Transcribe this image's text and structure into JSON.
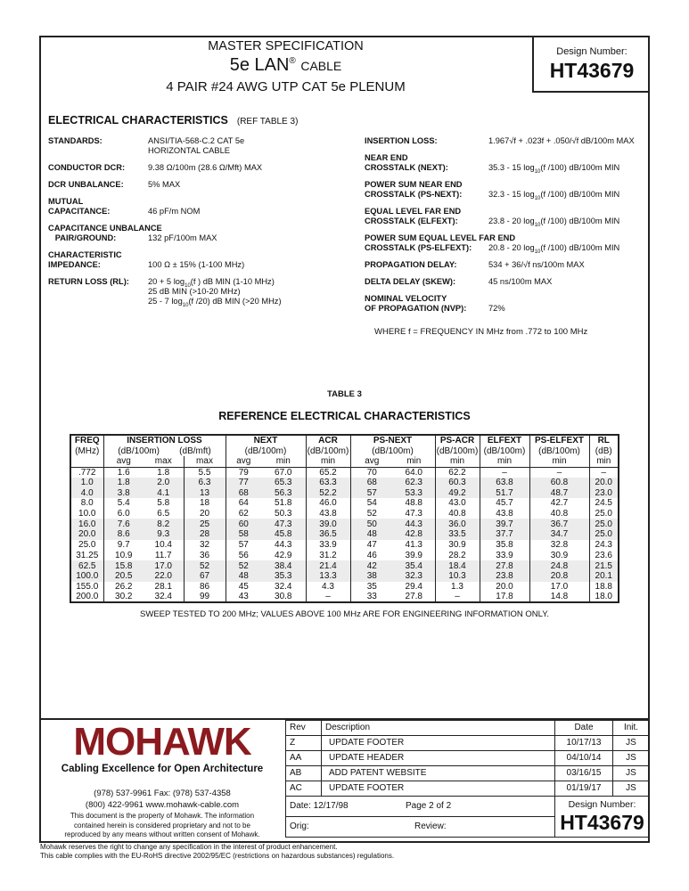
{
  "header": {
    "line1": "MASTER SPECIFICATION",
    "line2_main": "5e LAN",
    "line2_reg": "®",
    "line2_rest": "CABLE",
    "line3": "4 PAIR #24 AWG UTP CAT 5e PLENUM",
    "design_label": "Design Number:",
    "design_number": "HT43679"
  },
  "electrical": {
    "title": "ELECTRICAL CHARACTERISTICS",
    "ref": "(REF TABLE 3)",
    "left": [
      {
        "label": [
          "STANDARDS:"
        ],
        "value": [
          "ANSI/TIA-568-C.2 CAT 5e",
          "HORIZONTAL CABLE"
        ]
      },
      {
        "label": [
          "CONDUCTOR DCR:"
        ],
        "value": [
          "9.38 Ω/100m (28.6 Ω/Mft) MAX"
        ]
      },
      {
        "label": [
          "DCR UNBALANCE:"
        ],
        "value": [
          "5% MAX"
        ]
      },
      {
        "label": [
          "MUTUAL",
          "CAPACITANCE:"
        ],
        "value": [
          "",
          "46 pF/m NOM"
        ]
      },
      {
        "label": [
          "CAPACITANCE UNBALANCE",
          "   PAIR/GROUND:"
        ],
        "value": [
          "",
          "132 pF/100m MAX"
        ]
      },
      {
        "label": [
          "CHARACTERISTIC",
          "IMPEDANCE:"
        ],
        "value": [
          "",
          "100 Ω ± 15% (1-100 MHz)"
        ]
      },
      {
        "label": [
          "RETURN LOSS (RL):"
        ],
        "value": [
          "20 + 5 log|10|(f ) dB MIN (1-10 MHz)",
          "25 dB MIN (>10-20 MHz)",
          "25 - 7 log|10|(f /20) dB MIN (>20 MHz)"
        ]
      }
    ],
    "right": [
      {
        "label": [
          "INSERTION LOSS:"
        ],
        "value": [
          "1.967√f + .023f + .050/√f dB/100m MAX"
        ]
      },
      {
        "label": [
          "NEAR END",
          "CROSSTALK (NEXT):"
        ],
        "value": [
          "",
          "35.3 - 15 log|10|(f /100) dB/100m MIN"
        ]
      },
      {
        "label": [
          "POWER SUM NEAR END",
          "CROSSTALK (PS-NEXT):"
        ],
        "value": [
          "",
          "32.3 - 15 log|10|(f /100) dB/100m MIN"
        ]
      },
      {
        "label": [
          "EQUAL LEVEL FAR END",
          "CROSSTALK (ELFEXT):"
        ],
        "value": [
          "",
          "23.8 - 20 log|10|(f /100) dB/100m MIN"
        ]
      },
      {
        "label": [
          "POWER SUM EQUAL LEVEL FAR END",
          "CROSSTALK (PS-ELFEXT):"
        ],
        "value": [
          "",
          "20.8 - 20 log|10|(f /100) dB/100m MIN"
        ]
      },
      {
        "label": [
          "PROPAGATION DELAY:"
        ],
        "value": [
          "534 + 36/√f  ns/100m MAX"
        ]
      },
      {
        "label": [
          "DELTA DELAY (SKEW):"
        ],
        "value": [
          "45 ns/100m MAX"
        ]
      },
      {
        "label": [
          "NOMINAL VELOCITY",
          "OF PROPAGATION (NVP):"
        ],
        "value": [
          "",
          "72%"
        ]
      }
    ],
    "where": "WHERE f = FREQUENCY IN MHz from .772 to 100 MHz"
  },
  "table": {
    "label": "TABLE 3",
    "title": "REFERENCE ELECTRICAL CHARACTERISTICS",
    "groups": [
      [
        "FREQ",
        "(MHz)",
        1
      ],
      [
        "INSERTION LOSS",
        "(dB/100m)        (dB/mft)",
        3
      ],
      [
        "NEXT",
        "(dB/100m)",
        2
      ],
      [
        "ACR",
        "(dB/100m)",
        1
      ],
      [
        "PS-NEXT",
        "(dB/100m)",
        2
      ],
      [
        "PS-ACR",
        "(dB/100m)",
        1
      ],
      [
        "ELFEXT",
        "(dB/100m)",
        1
      ],
      [
        "PS-ELFEXT",
        "(dB/100m)",
        1
      ],
      [
        "RL",
        "(dB)",
        1
      ]
    ],
    "subheaders": [
      "",
      "avg",
      "max",
      "max",
      "avg",
      "min",
      "min",
      "avg",
      "min",
      "min",
      "min",
      "min",
      "min"
    ],
    "rows": [
      [
        ".772",
        "1.6",
        "1.8",
        "5.5",
        "79",
        "67.0",
        "65.2",
        "70",
        "64.0",
        "62.2",
        "–",
        "–",
        "–"
      ],
      [
        "1.0",
        "1.8",
        "2.0",
        "6.3",
        "77",
        "65.3",
        "63.3",
        "68",
        "62.3",
        "60.3",
        "63.8",
        "60.8",
        "20.0"
      ],
      [
        "4.0",
        "3.8",
        "4.1",
        "13",
        "68",
        "56.3",
        "52.2",
        "57",
        "53.3",
        "49.2",
        "51.7",
        "48.7",
        "23.0"
      ],
      [
        "8.0",
        "5.4",
        "5.8",
        "18",
        "64",
        "51.8",
        "46.0",
        "54",
        "48.8",
        "43.0",
        "45.7",
        "42.7",
        "24.5"
      ],
      [
        "10.0",
        "6.0",
        "6.5",
        "20",
        "62",
        "50.3",
        "43.8",
        "52",
        "47.3",
        "40.8",
        "43.8",
        "40.8",
        "25.0"
      ],
      [
        "16.0",
        "7.6",
        "8.2",
        "25",
        "60",
        "47.3",
        "39.0",
        "50",
        "44.3",
        "36.0",
        "39.7",
        "36.7",
        "25.0"
      ],
      [
        "20.0",
        "8.6",
        "9.3",
        "28",
        "58",
        "45.8",
        "36.5",
        "48",
        "42.8",
        "33.5",
        "37.7",
        "34.7",
        "25.0"
      ],
      [
        "25.0",
        "9.7",
        "10.4",
        "32",
        "57",
        "44.3",
        "33.9",
        "47",
        "41.3",
        "30.9",
        "35.8",
        "32.8",
        "24.3"
      ],
      [
        "31.25",
        "10.9",
        "11.7",
        "36",
        "56",
        "42.9",
        "31.2",
        "46",
        "39.9",
        "28.2",
        "33.9",
        "30.9",
        "23.6"
      ],
      [
        "62.5",
        "15.8",
        "17.0",
        "52",
        "52",
        "38.4",
        "21.4",
        "42",
        "35.4",
        "18.4",
        "27.8",
        "24.8",
        "21.5"
      ],
      [
        "100.0",
        "20.5",
        "22.0",
        "67",
        "48",
        "35.3",
        "13.3",
        "38",
        "32.3",
        "10.3",
        "23.8",
        "20.8",
        "20.1"
      ],
      [
        "155.0",
        "26.2",
        "28.1",
        "86",
        "45",
        "32.4",
        "4.3",
        "35",
        "29.4",
        "1.3",
        "20.0",
        "17.0",
        "18.8"
      ],
      [
        "200.0",
        "30.2",
        "32.4",
        "99",
        "43",
        "30.8",
        "–",
        "33",
        "27.8",
        "–",
        "17.8",
        "14.8",
        "18.0"
      ]
    ],
    "note": "SWEEP TESTED TO 200 MHz; VALUES ABOVE 100 MHz ARE FOR ENGINEERING INFORMATION ONLY."
  },
  "footer": {
    "logo": "MOHAWK",
    "tagline": "Cabling Excellence for Open Architecture",
    "phone": "(978) 537-9961  Fax: (978) 537-4358",
    "phone2": "(800) 422-9961  www.mohawk-cable.com",
    "property": [
      "This document is the property of Mohawk.  The information",
      "contained herein is considered proprietary and not to be",
      "reproduced by any means without written consent of Mohawk."
    ],
    "rev_headers": [
      "Rev",
      "Description",
      "Date",
      "Init."
    ],
    "revisions": [
      [
        "Z",
        "UPDATE FOOTER",
        "10/17/13",
        "JS"
      ],
      [
        "AA",
        "UPDATE HEADER",
        "04/10/14",
        "JS"
      ],
      [
        "AB",
        "ADD PATENT WEBSITE",
        "03/16/15",
        "JS"
      ],
      [
        "AC",
        "UPDATE FOOTER",
        "01/19/17",
        "JS"
      ]
    ],
    "date": "Date: 12/17/98",
    "page": "Page 2 of 2",
    "orig": "Orig:",
    "review": "Review:",
    "design_label": "Design Number:",
    "design_number": "HT43679",
    "disclaimer1": "Mohawk reserves the right to change any specification in the interest of product enhancement.",
    "disclaimer2": "This cable complies with the EU-RoHS directive 2002/95/EC (restrictions on hazardous substances) regulations."
  },
  "colors": {
    "logo": "#8b1a1f",
    "shade": "#ececec"
  }
}
